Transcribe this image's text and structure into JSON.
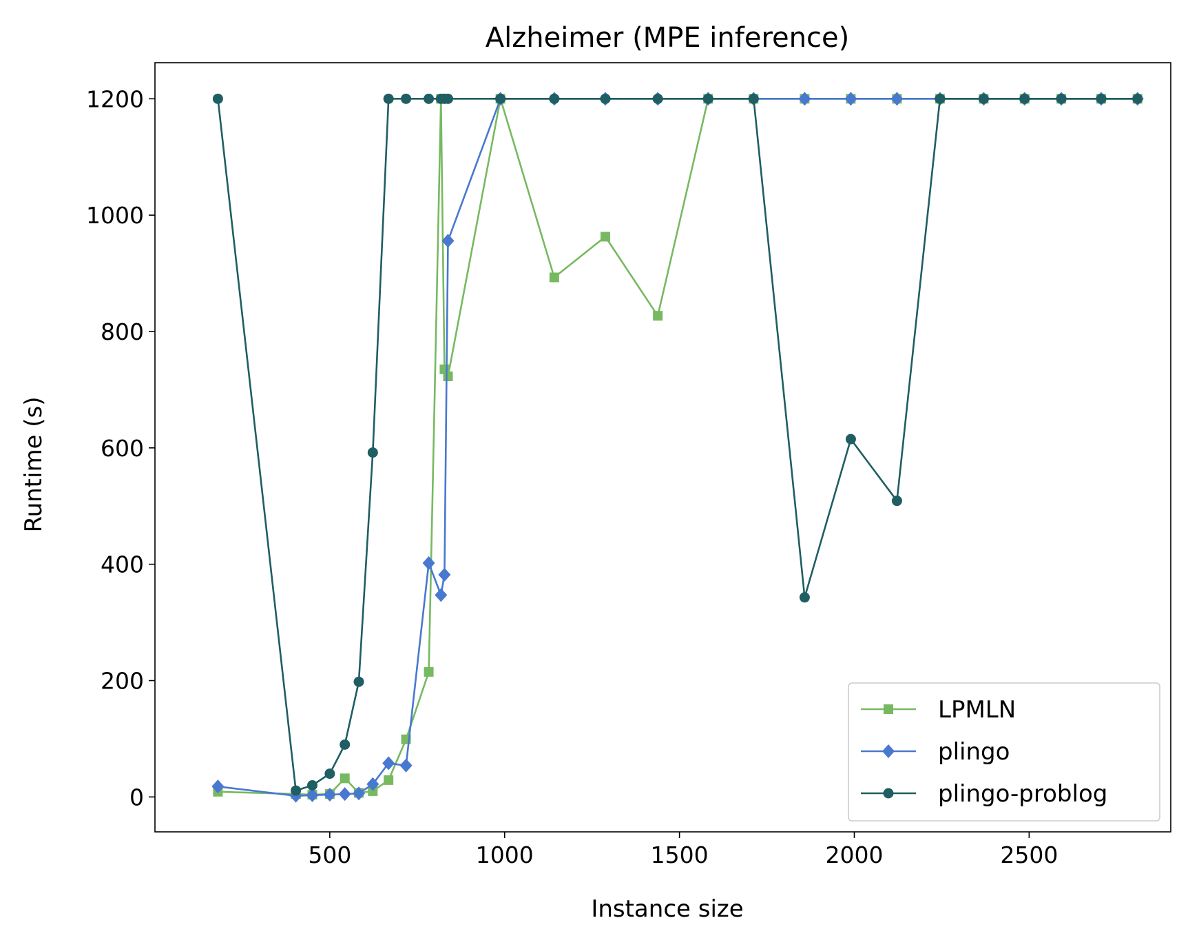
{
  "chart_data": {
    "type": "line",
    "title": "Alzheimer (MPE inference)",
    "xlabel": "Instance size",
    "ylabel": "Runtime (s)",
    "xlim": [
      0,
      2905
    ],
    "ylim": [
      -60,
      1262
    ],
    "xticks": [
      500,
      1000,
      1500,
      2000,
      2500
    ],
    "yticks": [
      0,
      200,
      400,
      600,
      800,
      1000,
      1200
    ],
    "grid": false,
    "legend_position": "lower-right",
    "series": [
      {
        "name": "LPMLN",
        "color": "#77b961",
        "marker": "square",
        "x": [
          180,
          403,
          450,
          500,
          543,
          583,
          623,
          668,
          718,
          783,
          818,
          828,
          838,
          988,
          1142,
          1288,
          1438,
          1582,
          1712,
          1858,
          1990,
          2122,
          2245,
          2370,
          2487,
          2592,
          2706,
          2810
        ],
        "y": [
          9,
          5,
          4,
          5,
          32,
          7,
          10,
          29,
          99,
          215,
          1200,
          735,
          723,
          1200,
          893,
          963,
          827,
          1200,
          1200,
          1200,
          1200,
          1200,
          1200,
          1200,
          1200,
          1200,
          1200,
          1200
        ]
      },
      {
        "name": "plingo",
        "color": "#4878cf",
        "marker": "diamond",
        "x": [
          180,
          403,
          450,
          500,
          543,
          583,
          623,
          668,
          718,
          783,
          818,
          828,
          838,
          988,
          1142,
          1288,
          1438,
          1582,
          1712,
          1858,
          1990,
          2122,
          2245,
          2370,
          2487,
          2592,
          2706,
          2810
        ],
        "y": [
          18,
          2,
          3,
          4,
          5,
          6,
          22,
          58,
          54,
          402,
          347,
          382,
          956,
          1200,
          1200,
          1200,
          1200,
          1200,
          1200,
          1200,
          1200,
          1200,
          1200,
          1200,
          1200,
          1200,
          1200,
          1200
        ]
      },
      {
        "name": "plingo-problog",
        "color": "#1f5e63",
        "marker": "circle",
        "x": [
          180,
          403,
          450,
          500,
          543,
          583,
          623,
          668,
          718,
          783,
          818,
          828,
          838,
          988,
          1142,
          1288,
          1438,
          1582,
          1712,
          1858,
          1990,
          2122,
          2245,
          2370,
          2487,
          2592,
          2706,
          2810
        ],
        "y": [
          1200,
          11,
          20,
          40,
          90,
          198,
          592,
          1200,
          1200,
          1200,
          1200,
          1200,
          1200,
          1200,
          1200,
          1200,
          1200,
          1200,
          1200,
          343,
          615,
          509,
          1200,
          1200,
          1200,
          1200,
          1200,
          1200
        ]
      }
    ]
  }
}
